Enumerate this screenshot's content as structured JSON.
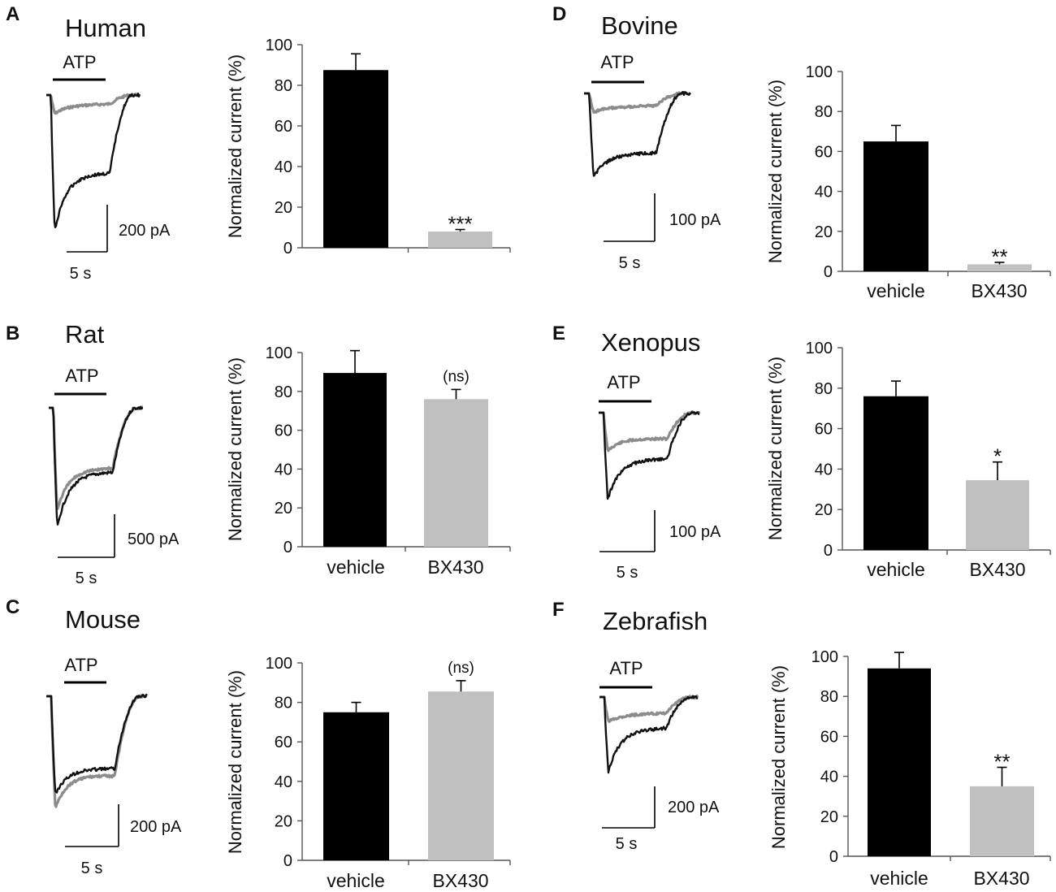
{
  "colors": {
    "vehicle": "#000000",
    "bx430": "#c0c0c0",
    "trace_control": "#111111",
    "trace_bx430": "#8c8c8c",
    "axis": "#555555"
  },
  "chart_data": [
    {
      "type": "bar",
      "panel": "A",
      "species": "Human",
      "stimulus": "ATP",
      "scale_current": "200 pA",
      "scale_time": "5 s",
      "categories": [
        "",
        ""
      ],
      "values": [
        87.5,
        8
      ],
      "errors": [
        8,
        1
      ],
      "ylabel": "Normalized current (%)",
      "ylim": [
        0,
        100
      ],
      "yticks": [
        "0",
        "20",
        "40",
        "60",
        "80",
        "100"
      ],
      "significance": "***"
    },
    {
      "type": "bar",
      "panel": "B",
      "species": "Rat",
      "stimulus": "ATP",
      "scale_current": "500 pA",
      "scale_time": "5 s",
      "categories": [
        "vehicle",
        "BX430"
      ],
      "values": [
        89.5,
        76
      ],
      "errors": [
        11.5,
        5
      ],
      "ylabel": "Normalized current (%)",
      "ylim": [
        0,
        100
      ],
      "yticks": [
        "0",
        "20",
        "40",
        "60",
        "80",
        "100"
      ],
      "significance": "(ns)"
    },
    {
      "type": "bar",
      "panel": "C",
      "species": "Mouse",
      "stimulus": "ATP",
      "scale_current": "200 pA",
      "scale_time": "5 s",
      "categories": [
        "vehicle",
        "BX430"
      ],
      "values": [
        75,
        85.5
      ],
      "errors": [
        5,
        5.5
      ],
      "ylabel": "Normalized current (%)",
      "ylim": [
        0,
        100
      ],
      "yticks": [
        "0",
        "20",
        "40",
        "60",
        "80",
        "100"
      ],
      "significance": "(ns)"
    },
    {
      "type": "bar",
      "panel": "D",
      "species": "Bovine",
      "stimulus": "ATP",
      "scale_current": "100 pA",
      "scale_time": "5 s",
      "categories": [
        "vehicle",
        "BX430"
      ],
      "values": [
        65,
        3.5
      ],
      "errors": [
        8,
        1
      ],
      "ylabel": "Normalized current (%)",
      "ylim": [
        0,
        100
      ],
      "yticks": [
        "0",
        "20",
        "40",
        "60",
        "80",
        "100"
      ],
      "significance": "**"
    },
    {
      "type": "bar",
      "panel": "E",
      "species": "Xenopus",
      "stimulus": "ATP",
      "scale_current": "100 pA",
      "scale_time": "5 s",
      "categories": [
        "vehicle",
        "BX430"
      ],
      "values": [
        76,
        34.5
      ],
      "errors": [
        7.5,
        9
      ],
      "ylabel": "Normalized current (%)",
      "ylim": [
        0,
        100
      ],
      "yticks": [
        "0",
        "20",
        "40",
        "60",
        "80",
        "100"
      ],
      "significance": "*"
    },
    {
      "type": "bar",
      "panel": "F",
      "species": "Zebrafish",
      "stimulus": "ATP",
      "scale_current": "200 pA",
      "scale_time": "5 s",
      "categories": [
        "vehicle",
        "BX430"
      ],
      "values": [
        94,
        35
      ],
      "errors": [
        8,
        9.5
      ],
      "ylabel": "Normalized current (%)",
      "ylim": [
        0,
        100
      ],
      "yticks": [
        "0",
        "20",
        "40",
        "60",
        "80",
        "100"
      ],
      "significance": "**"
    }
  ]
}
